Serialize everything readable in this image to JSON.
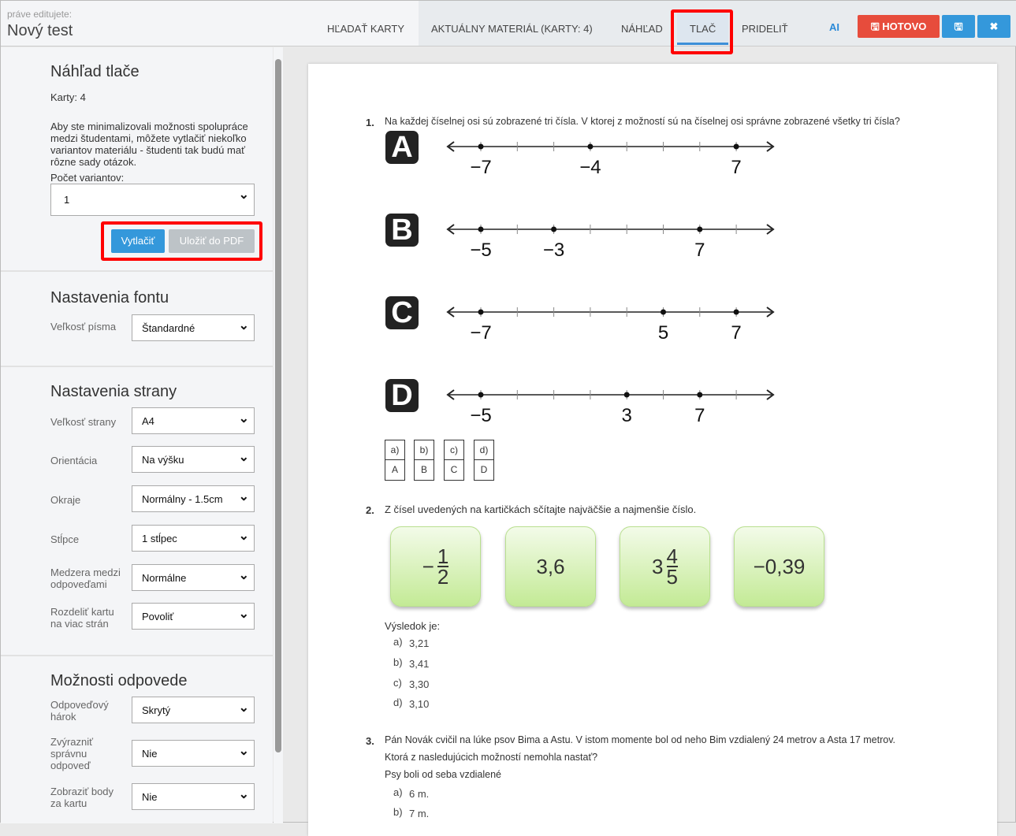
{
  "header": {
    "editing_label": "práve editujete:",
    "title": "Nový test",
    "tabs": [
      "HĽADAŤ KARTY",
      "AKTUÁLNY MATERIÁL (KARTY: 4)",
      "NÁHĽAD",
      "TLAČ",
      "PRIDELIŤ"
    ],
    "active_tab": "TLAČ",
    "ai": "AI",
    "done": "HOTOVO",
    "save_icon": "floppy-icon",
    "close_icon": "close-icon",
    "colors": {
      "done": "#e74c3c",
      "primary": "#3498db"
    }
  },
  "print": {
    "title": "Náhľad tlače",
    "cards": "Karty: 4",
    "info": "Aby ste minimalizovali možnosti spolupráce medzi študentami, môžete vytlačiť niekoľko variantov materiálu - študenti tak budú mať rôzne sady otázok.",
    "variants_label": "Počet variantov:",
    "variants_value": "1",
    "print_btn": "Vytlačiť",
    "pdf_btn": "Uložiť do PDF"
  },
  "font": {
    "title": "Nastavenia fontu",
    "size_label": "Veľkosť písma",
    "size_value": "Štandardné"
  },
  "pagesettings": {
    "title": "Nastavenia strany",
    "rows": [
      {
        "label": "Veľkosť strany",
        "value": "A4"
      },
      {
        "label": "Orientácia",
        "value": "Na výšku"
      },
      {
        "label": "Okraje",
        "value": "Normálny - 1.5cm"
      },
      {
        "label": "Stĺpce",
        "value": "1 stĺpec"
      },
      {
        "label": "Medzera medzi odpoveďami",
        "value": "Normálne"
      },
      {
        "label": "Rozdeliť kartu na viac strán",
        "value": "Povoliť"
      }
    ]
  },
  "answers": {
    "title": "Možnosti odpovede",
    "rows": [
      {
        "label": "Odpoveďový hárok",
        "value": "Skrytý"
      },
      {
        "label": "Zvýrazniť správnu odpoveď",
        "value": "Nie"
      },
      {
        "label": "Zobraziť body za kartu",
        "value": "Nie"
      }
    ]
  },
  "q1": {
    "num": "1.",
    "text": "Na každej číselnej osi sú zobrazené tri čísla. V ktorej z možností sú na číselnej osi správne zobrazené všetky tri čísla?",
    "lines": [
      {
        "letter": "A",
        "points": [
          {
            "tick": 0,
            "label": "−7"
          },
          {
            "tick": 3,
            "label": "−4"
          },
          {
            "tick": 7,
            "label": "7"
          }
        ]
      },
      {
        "letter": "B",
        "points": [
          {
            "tick": 0,
            "label": "−5"
          },
          {
            "tick": 2,
            "label": "−3"
          },
          {
            "tick": 6,
            "label": "7"
          }
        ]
      },
      {
        "letter": "C",
        "points": [
          {
            "tick": 0,
            "label": "−7"
          },
          {
            "tick": 5,
            "label": "5"
          },
          {
            "tick": 7,
            "label": "7"
          }
        ]
      },
      {
        "letter": "D",
        "points": [
          {
            "tick": 0,
            "label": "−5"
          },
          {
            "tick": 4,
            "label": "3"
          },
          {
            "tick": 6,
            "label": "7"
          }
        ]
      }
    ],
    "boxes": [
      {
        "top": "a)",
        "bottom": "A"
      },
      {
        "top": "b)",
        "bottom": "B"
      },
      {
        "top": "c)",
        "bottom": "C"
      },
      {
        "top": "d)",
        "bottom": "D"
      }
    ]
  },
  "q2": {
    "num": "2.",
    "text": "Z čísel uvedených na kartičkách sčítajte najväčšie a najmenšie číslo.",
    "cards": {
      "c1_sign": "−",
      "c1_num": "1",
      "c1_den": "2",
      "c2": "3,6",
      "c3_whole": "3",
      "c3_num": "4",
      "c3_den": "5",
      "c4": "−0,39"
    },
    "result_label": "Výsledok je:",
    "options": [
      {
        "l": "a)",
        "v": "3,21"
      },
      {
        "l": "b)",
        "v": "3,41"
      },
      {
        "l": "c)",
        "v": "3,30"
      },
      {
        "l": "d)",
        "v": "3,10"
      }
    ]
  },
  "q3": {
    "num": "3.",
    "text": "Pán Novák cvičil na lúke psov Bima a Astu. V istom momente bol od neho Bim vzdialený 24 metrov a Asta 17 metrov.",
    "text2": "Ktorá z nasledujúcich možností nemohla nastať?",
    "text3": "Psy boli od seba vzdialené",
    "options": [
      {
        "l": "a)",
        "v": "6 m."
      },
      {
        "l": "b)",
        "v": "7 m."
      }
    ]
  }
}
